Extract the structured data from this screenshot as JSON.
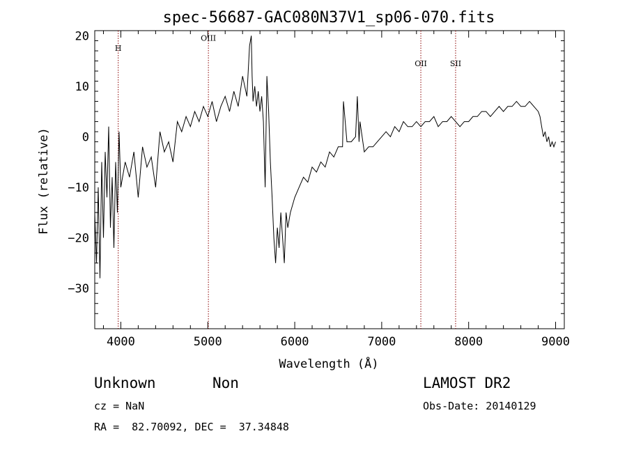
{
  "chart_data": {
    "type": "line",
    "title": "spec-56687-GAC080N37V1_sp06-070.fits",
    "xlabel": "Wavelength (Å)",
    "ylabel": "Flux (relative)",
    "xlim": [
      3700,
      9100
    ],
    "ylim": [
      -38,
      21
    ],
    "x_ticks": [
      4000,
      5000,
      6000,
      7000,
      8000,
      9000
    ],
    "y_ticks": [
      -30,
      -20,
      -10,
      0,
      10,
      20
    ],
    "grid": false,
    "series": [
      {
        "x": [
          3700,
          3720,
          3740,
          3760,
          3780,
          3800,
          3820,
          3840,
          3860,
          3880,
          3900,
          3920,
          3940,
          3960,
          3980,
          4000,
          4050,
          4100,
          4150,
          4200,
          4250,
          4300,
          4350,
          4400,
          4450,
          4500,
          4550,
          4600,
          4650,
          4700,
          4750,
          4800,
          4850,
          4900,
          4950,
          5000,
          5050,
          5100,
          5150,
          5200,
          5250,
          5300,
          5350,
          5400,
          5450,
          5480,
          5500,
          5510,
          5520,
          5540,
          5560,
          5580,
          5600,
          5620,
          5640,
          5660,
          5680,
          5700,
          5720,
          5740,
          5760,
          5780,
          5800,
          5820,
          5840,
          5860,
          5880,
          5900,
          5920,
          5950,
          6000,
          6050,
          6100,
          6150,
          6200,
          6250,
          6300,
          6350,
          6400,
          6450,
          6500,
          6550,
          6560,
          6600,
          6650,
          6700,
          6720,
          6740,
          6750,
          6800,
          6850,
          6900,
          6950,
          7000,
          7050,
          7100,
          7150,
          7200,
          7250,
          7300,
          7350,
          7400,
          7450,
          7500,
          7550,
          7600,
          7650,
          7700,
          7750,
          7800,
          7850,
          7900,
          7950,
          8000,
          8050,
          8100,
          8150,
          8200,
          8250,
          8300,
          8350,
          8400,
          8450,
          8500,
          8550,
          8600,
          8650,
          8700,
          8750,
          8800,
          8820,
          8840,
          8860,
          8880,
          8900,
          8920,
          8940,
          8960,
          8980,
          9000
        ],
        "y": [
          -15,
          -25,
          -10,
          -28,
          -5,
          -20,
          -3,
          -12,
          2,
          -18,
          -8,
          -22,
          -5,
          -15,
          1,
          -10,
          -5,
          -8,
          -3,
          -12,
          -2,
          -6,
          -4,
          -10,
          1,
          -3,
          -1,
          -5,
          3,
          1,
          4,
          2,
          5,
          3,
          6,
          4,
          7,
          3,
          6,
          8,
          5,
          9,
          6,
          12,
          8,
          18,
          20,
          12,
          7,
          10,
          6,
          9,
          5,
          8,
          3,
          -10,
          12,
          5,
          -5,
          -12,
          -20,
          -25,
          -18,
          -22,
          -15,
          -20,
          -25,
          -15,
          -18,
          -15,
          -12,
          -10,
          -8,
          -9,
          -6,
          -7,
          -5,
          -6,
          -3,
          -4,
          -2,
          -2,
          7,
          -1,
          -1,
          0,
          8,
          -1,
          3,
          -3,
          -2,
          -2,
          -1,
          0,
          1,
          0,
          2,
          1,
          3,
          2,
          2,
          3,
          2,
          3,
          3,
          4,
          2,
          3,
          3,
          4,
          3,
          2,
          3,
          3,
          4,
          4,
          5,
          5,
          4,
          5,
          6,
          5,
          6,
          6,
          7,
          6,
          6,
          7,
          6,
          5,
          4,
          2,
          0,
          1,
          -1,
          0,
          -2,
          -1,
          -2,
          -1
        ]
      }
    ],
    "annotations": [
      {
        "label": "H",
        "x": 3970,
        "label_y": 17
      },
      {
        "label": "OIII",
        "x": 5007,
        "label_y": 19
      },
      {
        "label": "OII",
        "x": 7450,
        "label_y": 14
      },
      {
        "label": "SII",
        "x": 7850,
        "label_y": 14
      }
    ],
    "annotation_color": "#8b0000"
  },
  "info": {
    "class": "Unknown",
    "subclass": "Non",
    "survey": "LAMOST DR2",
    "cz": "cz = NaN",
    "obs_date": "Obs-Date: 20140129",
    "coords": "RA =  82.70092, DEC =  37.34848"
  }
}
